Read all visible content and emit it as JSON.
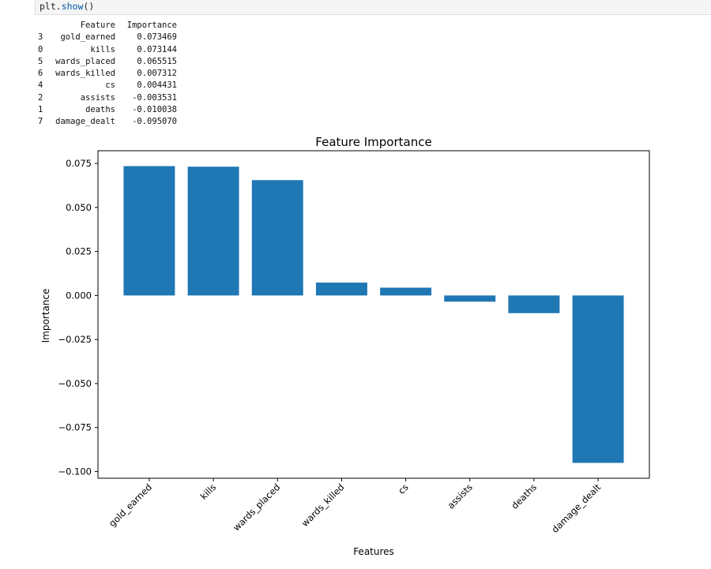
{
  "code": {
    "fn": "plt.",
    "call": "show",
    "suffix": "()"
  },
  "table": {
    "headers": [
      "",
      "Feature",
      "Importance"
    ],
    "rows": [
      {
        "idx": "3",
        "feature": "gold_earned",
        "importance": "0.073469"
      },
      {
        "idx": "0",
        "feature": "kills",
        "importance": "0.073144"
      },
      {
        "idx": "5",
        "feature": "wards_placed",
        "importance": "0.065515"
      },
      {
        "idx": "6",
        "feature": "wards_killed",
        "importance": "0.007312"
      },
      {
        "idx": "4",
        "feature": "cs",
        "importance": "0.004431"
      },
      {
        "idx": "2",
        "feature": "assists",
        "importance": "-0.003531"
      },
      {
        "idx": "1",
        "feature": "deaths",
        "importance": "-0.010038"
      },
      {
        "idx": "7",
        "feature": "damage_dealt",
        "importance": "-0.095070"
      }
    ]
  },
  "chart_data": {
    "type": "bar",
    "title": "Feature Importance",
    "xlabel": "Features",
    "ylabel": "Importance",
    "categories": [
      "gold_earned",
      "kills",
      "wards_placed",
      "wards_killed",
      "cs",
      "assists",
      "deaths",
      "damage_dealt"
    ],
    "values": [
      0.073469,
      0.073144,
      0.065515,
      0.007312,
      0.004431,
      -0.003531,
      -0.010038,
      -0.09507
    ],
    "ylim": [
      -0.1038,
      0.0822
    ],
    "yticks": [
      0.075,
      0.05,
      0.025,
      0.0,
      -0.025,
      -0.05,
      -0.075,
      -0.1
    ],
    "ytick_labels": [
      "0.075",
      "0.050",
      "0.025",
      "0.000",
      "−0.025",
      "−0.050",
      "−0.075",
      "−0.100"
    ],
    "bar_color": "#1f77b4",
    "grid": false,
    "xtick_rotation": 45
  }
}
